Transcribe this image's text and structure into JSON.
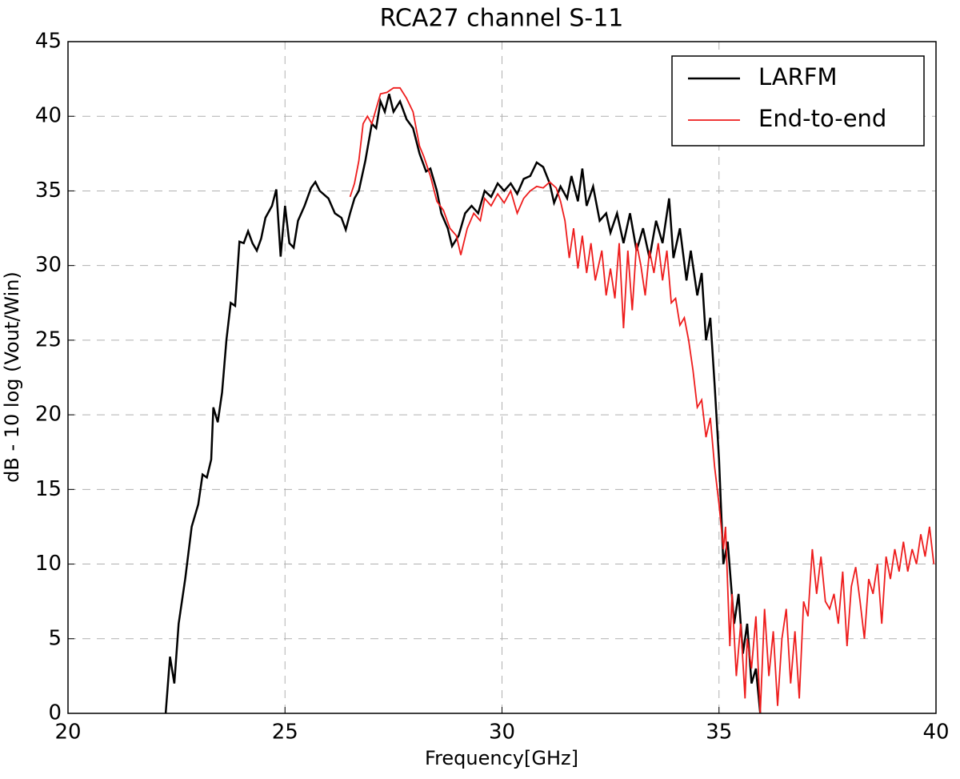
{
  "chart_data": {
    "type": "line",
    "title": "RCA27 channel S-11",
    "xlabel": "Frequency[GHz]",
    "ylabel": "dB - 10 log (Vout/Win)",
    "xlim": [
      20,
      40
    ],
    "ylim": [
      0,
      45
    ],
    "xticks": [
      20,
      25,
      30,
      35,
      40
    ],
    "yticks": [
      0,
      5,
      10,
      15,
      20,
      25,
      30,
      35,
      40,
      45
    ],
    "grid": true,
    "legend": "upper right",
    "series": [
      {
        "name": "LARFM",
        "color": "#000000",
        "x": [
          22.25,
          22.35,
          22.45,
          22.55,
          22.7,
          22.85,
          23.0,
          23.1,
          23.2,
          23.3,
          23.35,
          23.45,
          23.55,
          23.65,
          23.75,
          23.85,
          23.95,
          24.05,
          24.15,
          24.25,
          24.35,
          24.45,
          24.55,
          24.7,
          24.8,
          24.9,
          25.0,
          25.1,
          25.2,
          25.3,
          25.45,
          25.6,
          25.7,
          25.8,
          26.0,
          26.15,
          26.3,
          26.4,
          26.5,
          26.6,
          26.7,
          26.85,
          27.0,
          27.1,
          27.2,
          27.3,
          27.4,
          27.5,
          27.65,
          27.8,
          27.95,
          28.1,
          28.25,
          28.35,
          28.5,
          28.6,
          28.75,
          28.85,
          29.0,
          29.15,
          29.3,
          29.45,
          29.6,
          29.75,
          29.9,
          30.05,
          30.2,
          30.35,
          30.5,
          30.65,
          30.8,
          30.95,
          31.1,
          31.2,
          31.35,
          31.5,
          31.6,
          31.75,
          31.85,
          31.95,
          32.1,
          32.25,
          32.4,
          32.5,
          32.65,
          32.8,
          32.95,
          33.1,
          33.25,
          33.4,
          33.55,
          33.7,
          33.85,
          33.95,
          34.1,
          34.25,
          34.35,
          34.5,
          34.6,
          34.7,
          34.8,
          34.9,
          35.0,
          35.1,
          35.2,
          35.35,
          35.45,
          35.55,
          35.65,
          35.75,
          35.85,
          35.95
        ],
        "values": [
          0,
          3.8,
          2,
          6,
          9,
          12.5,
          14,
          16,
          15.8,
          17,
          20.5,
          19.5,
          21.5,
          25,
          27.5,
          27.3,
          31.6,
          31.5,
          32.3,
          31.5,
          31,
          31.8,
          33.2,
          34,
          35.1,
          30.6,
          34,
          31.5,
          31.2,
          33,
          34,
          35.2,
          35.6,
          35,
          34.5,
          33.5,
          33.2,
          32.4,
          33.5,
          34.5,
          35,
          37,
          39.5,
          39.2,
          41,
          40.3,
          41.5,
          40.3,
          41,
          39.8,
          39.2,
          37.5,
          36.3,
          36.5,
          35,
          33.5,
          32.5,
          31.3,
          32,
          33.5,
          34,
          33.5,
          35,
          34.6,
          35.5,
          35,
          35.5,
          34.8,
          35.8,
          36,
          36.9,
          36.6,
          35.5,
          34.2,
          35.3,
          34.5,
          36,
          34.3,
          36.5,
          34,
          35.3,
          33,
          33.5,
          32.2,
          33.5,
          31.5,
          33.5,
          31,
          32.5,
          30.5,
          33,
          31.5,
          34.5,
          30.5,
          32.5,
          29,
          31,
          28,
          29.5,
          25,
          26.5,
          22,
          17,
          10,
          11.5,
          6,
          8,
          4,
          6,
          2,
          3,
          0
        ]
      },
      {
        "name": "End-to-end",
        "color": "#ee1c1c",
        "x": [
          26.5,
          26.6,
          26.7,
          26.8,
          26.9,
          27.0,
          27.1,
          27.2,
          27.35,
          27.5,
          27.65,
          27.8,
          27.95,
          28.1,
          28.2,
          28.35,
          28.5,
          28.65,
          28.8,
          28.95,
          29.05,
          29.2,
          29.35,
          29.5,
          29.6,
          29.75,
          29.9,
          30.05,
          30.2,
          30.35,
          30.5,
          30.65,
          30.8,
          30.95,
          31.1,
          31.25,
          31.35,
          31.45,
          31.55,
          31.65,
          31.75,
          31.85,
          31.95,
          32.05,
          32.15,
          32.3,
          32.4,
          32.5,
          32.6,
          32.7,
          32.8,
          32.9,
          33.0,
          33.1,
          33.2,
          33.3,
          33.4,
          33.5,
          33.6,
          33.7,
          33.8,
          33.9,
          34.0,
          34.1,
          34.2,
          34.3,
          34.4,
          34.5,
          34.6,
          34.7,
          34.8,
          34.9,
          35.0,
          35.1,
          35.15,
          35.25,
          35.3,
          35.4,
          35.5,
          35.6,
          35.65,
          35.75,
          35.85,
          35.95,
          36.05,
          36.15,
          36.25,
          36.35,
          36.45,
          36.55,
          36.65,
          36.75,
          36.85,
          36.95,
          37.05,
          37.15,
          37.25,
          37.35,
          37.45,
          37.55,
          37.65,
          37.75,
          37.85,
          37.95,
          38.05,
          38.15,
          38.25,
          38.35,
          38.45,
          38.55,
          38.65,
          38.75,
          38.85,
          38.95,
          39.05,
          39.15,
          39.25,
          39.35,
          39.45,
          39.55,
          39.65,
          39.75,
          39.85,
          39.95
        ],
        "values": [
          34.6,
          35.5,
          37,
          39.5,
          40,
          39.5,
          40.5,
          41.5,
          41.6,
          41.9,
          41.9,
          41.2,
          40.3,
          38,
          37.3,
          36,
          34.3,
          33.7,
          32.5,
          32,
          30.7,
          32.5,
          33.5,
          33,
          34.5,
          34,
          34.8,
          34.2,
          35,
          33.5,
          34.5,
          35,
          35.3,
          35.2,
          35.6,
          35.2,
          34.3,
          33,
          30.5,
          32.5,
          29.8,
          32,
          29.5,
          31.5,
          29,
          31,
          28,
          29.8,
          27.8,
          31.5,
          25.8,
          31,
          27,
          31.5,
          30,
          28,
          31,
          29.5,
          31.5,
          29,
          31,
          27.5,
          27.8,
          26,
          26.5,
          25,
          23,
          20.5,
          21,
          18.5,
          19.8,
          16.5,
          14,
          11,
          12.5,
          4.5,
          8,
          2.5,
          6,
          1,
          5,
          3,
          6.5,
          0,
          7,
          2.5,
          5.5,
          0.5,
          5,
          7,
          2,
          5.5,
          1,
          7.5,
          6.5,
          11,
          8,
          10.5,
          7.5,
          7,
          8,
          6,
          9.5,
          4.5,
          8.5,
          9.8,
          7.5,
          5,
          9,
          8,
          10,
          6,
          10.5,
          9,
          11,
          9.5,
          11.5,
          9.5,
          11,
          10,
          12,
          10.5,
          12.5,
          10
        ]
      }
    ]
  }
}
